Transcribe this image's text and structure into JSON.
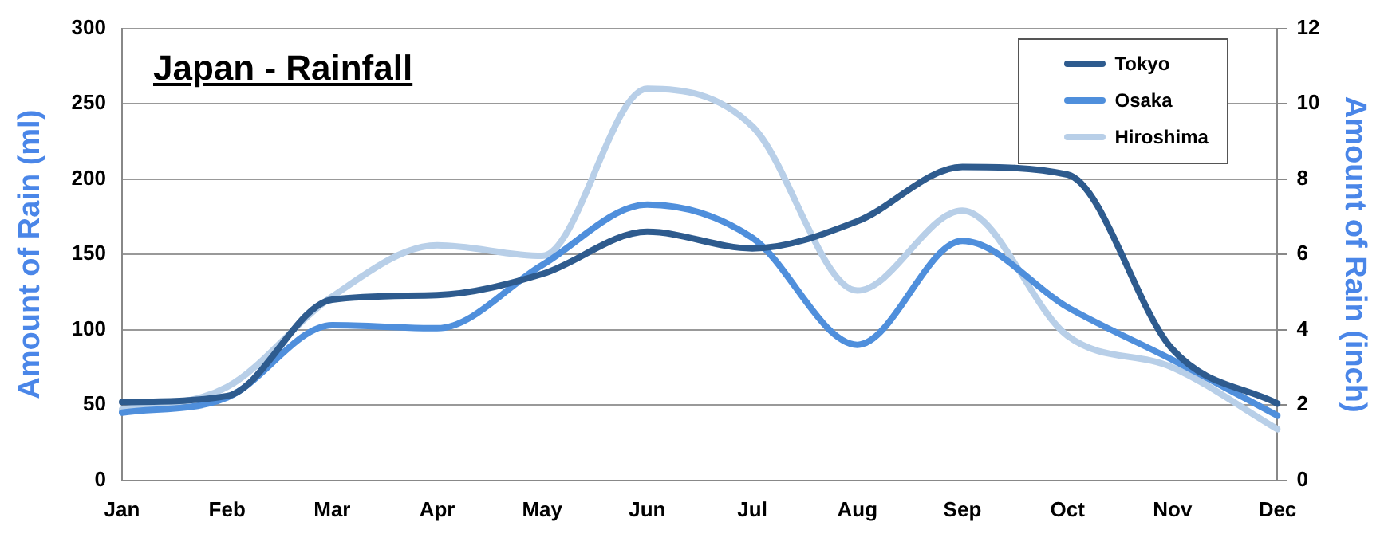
{
  "chart_data": {
    "type": "line",
    "title": "Japan - Rainfall",
    "ylabel": "Amount of Rain (ml)",
    "y2label": "Amount of Rain (inch)",
    "categories": [
      "Jan",
      "Feb",
      "Mar",
      "Apr",
      "May",
      "Jun",
      "Jul",
      "Aug",
      "Sep",
      "Oct",
      "Nov",
      "Dec"
    ],
    "series": [
      {
        "name": "Tokyo",
        "color": "#2e5b8e",
        "values": [
          52,
          56,
          120,
          123,
          137,
          165,
          154,
          172,
          208,
          203,
          87,
          51
        ]
      },
      {
        "name": "Osaka",
        "color": "#4f8fdc",
        "values": [
          45,
          55,
          103,
          101,
          143,
          183,
          161,
          90,
          159,
          115,
          80,
          43
        ]
      },
      {
        "name": "Hiroshima",
        "color": "#b8cfe8",
        "values": [
          47,
          62,
          122,
          156,
          149,
          260,
          235,
          126,
          179,
          96,
          75,
          34
        ]
      }
    ],
    "ylim": [
      0,
      300
    ],
    "yticks": [
      0,
      50,
      100,
      150,
      200,
      250,
      300
    ],
    "y2lim": [
      0,
      12
    ],
    "y2ticks": [
      0,
      2,
      4,
      6,
      8,
      10,
      12
    ],
    "grid": "y",
    "legend": "top right",
    "marker": "none",
    "line_style": "solid"
  }
}
